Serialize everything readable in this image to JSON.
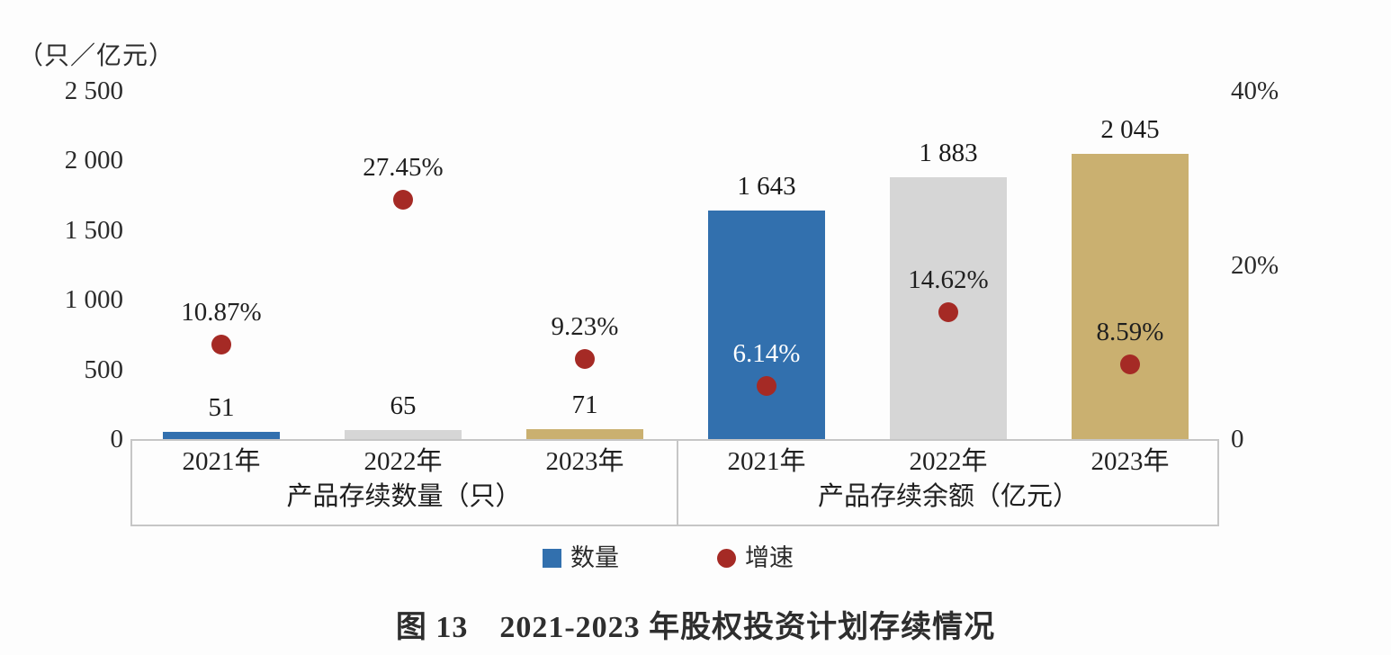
{
  "chart_data": {
    "type": "bar",
    "title": "图 13　2021-2023 年股权投资计划存续情况",
    "unit_label": "（只／亿元）",
    "left_axis": {
      "range": [
        0,
        2500
      ],
      "ticks": [
        {
          "text": "2 500",
          "value": 2500
        },
        {
          "text": "2 000",
          "value": 2000
        },
        {
          "text": "1 500",
          "value": 1500
        },
        {
          "text": "1 000",
          "value": 1000
        },
        {
          "text": "500",
          "value": 500
        },
        {
          "text": "0",
          "value": 0
        }
      ]
    },
    "right_axis": {
      "range": [
        0,
        40
      ],
      "ticks": [
        {
          "text": "40%",
          "value": 40
        },
        {
          "text": "20%",
          "value": 20
        },
        {
          "text": "0",
          "value": 0
        }
      ]
    },
    "groups": [
      {
        "label": "产品存续数量（只）",
        "categories": [
          "2021年",
          "2022年",
          "2023年"
        ]
      },
      {
        "label": "产品存续余额（亿元）",
        "categories": [
          "2021年",
          "2022年",
          "2023年"
        ]
      }
    ],
    "bars": [
      {
        "group": 0,
        "category": "2021年",
        "value": 51,
        "label": "51",
        "color": "#3270AE"
      },
      {
        "group": 0,
        "category": "2022年",
        "value": 65,
        "label": "65",
        "color": "#D6D6D6"
      },
      {
        "group": 0,
        "category": "2023年",
        "value": 71,
        "label": "71",
        "color": "#CAB070"
      },
      {
        "group": 1,
        "category": "2021年",
        "value": 1643,
        "label": "1 643",
        "color": "#3270AE"
      },
      {
        "group": 1,
        "category": "2022年",
        "value": 1883,
        "label": "1 883",
        "color": "#D6D6D6"
      },
      {
        "group": 1,
        "category": "2023年",
        "value": 2045,
        "label": "2 045",
        "color": "#CAB070"
      }
    ],
    "growth_points": [
      {
        "group": 0,
        "category": "2021年",
        "value": 10.87,
        "label": "10.87%",
        "label_color": "#1f1f1f"
      },
      {
        "group": 0,
        "category": "2022年",
        "value": 27.45,
        "label": "27.45%",
        "label_color": "#1f1f1f"
      },
      {
        "group": 0,
        "category": "2023年",
        "value": 9.23,
        "label": "9.23%",
        "label_color": "#1f1f1f"
      },
      {
        "group": 1,
        "category": "2021年",
        "value": 6.14,
        "label": "6.14%",
        "label_color": "#ffffff"
      },
      {
        "group": 1,
        "category": "2022年",
        "value": 14.62,
        "label": "14.62%",
        "label_color": "#1f1f1f"
      },
      {
        "group": 1,
        "category": "2023年",
        "value": 8.59,
        "label": "8.59%",
        "label_color": "#1f1f1f"
      }
    ],
    "point_color": "#A52A25",
    "legend_position": "bottom",
    "grid": false
  },
  "legend": {
    "items": [
      {
        "label": "数量",
        "marker": "square",
        "color": "#3270AE"
      },
      {
        "label": "增速",
        "marker": "circle",
        "color": "#A52A25"
      }
    ]
  },
  "caption": "图 13　2021-2023 年股权投资计划存续情况"
}
